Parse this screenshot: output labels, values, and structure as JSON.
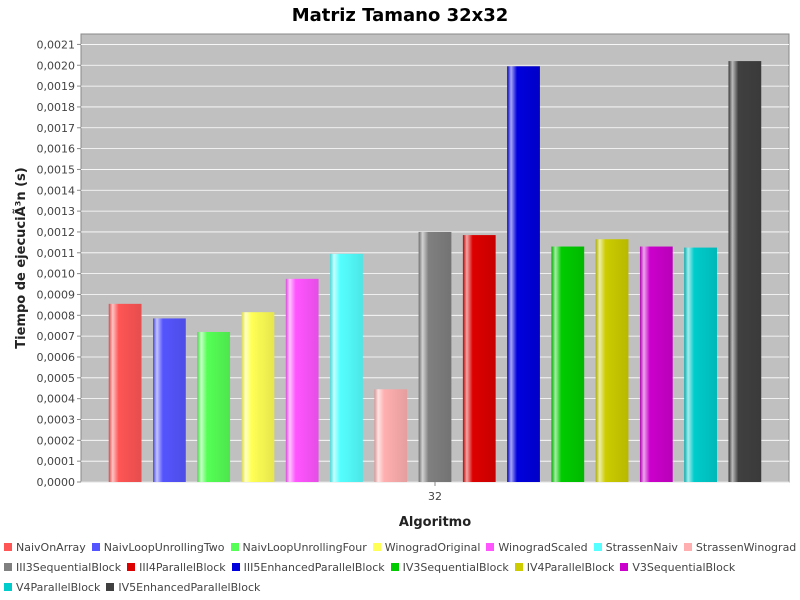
{
  "chart_data": {
    "type": "bar",
    "title": "Matriz Tamano 32x32",
    "xlabel": "Algoritmo",
    "ylabel": "Tiempo de ejecuciÃ³n (s)",
    "categories": [
      "32"
    ],
    "ylim": [
      0,
      0.00215
    ],
    "yticks": [
      "0,0000",
      "0,0001",
      "0,0002",
      "0,0003",
      "0,0004",
      "0,0005",
      "0,0006",
      "0,0007",
      "0,0008",
      "0,0009",
      "0,0010",
      "0,0011",
      "0,0012",
      "0,0013",
      "0,0014",
      "0,0015",
      "0,0016",
      "0,0017",
      "0,0018",
      "0,0019",
      "0,0020",
      "0,0021"
    ],
    "grid": true,
    "legend_position": "bottom",
    "series": [
      {
        "name": "NaivOnArray",
        "color": "#ff5555",
        "values": [
          0.000855
        ]
      },
      {
        "name": "NaivLoopUnrollingTwo",
        "color": "#5555ff",
        "values": [
          0.000785
        ]
      },
      {
        "name": "NaivLoopUnrollingFour",
        "color": "#55ff55",
        "values": [
          0.00072
        ]
      },
      {
        "name": "WinogradOriginal",
        "color": "#ffff55",
        "values": [
          0.000815
        ]
      },
      {
        "name": "WinogradScaled",
        "color": "#ff55ff",
        "values": [
          0.000975
        ]
      },
      {
        "name": "StrassenNaiv",
        "color": "#55ffff",
        "values": [
          0.001095
        ]
      },
      {
        "name": "StrassenWinograd",
        "color": "#ffafaf",
        "values": [
          0.000445
        ]
      },
      {
        "name": "III3SequentialBlock",
        "color": "#808080",
        "values": [
          0.0012
        ]
      },
      {
        "name": "III4ParallelBlock",
        "color": "#dd0000",
        "values": [
          0.001185
        ]
      },
      {
        "name": "III5EnhancedParallelBlock",
        "color": "#0000dd",
        "values": [
          0.001995
        ]
      },
      {
        "name": "IV3SequentialBlock",
        "color": "#00cc00",
        "values": [
          0.00113
        ]
      },
      {
        "name": "IV4ParallelBlock",
        "color": "#cccc00",
        "values": [
          0.001165
        ]
      },
      {
        "name": "V3SequentialBlock",
        "color": "#cc00cc",
        "values": [
          0.00113
        ]
      },
      {
        "name": "V4ParallelBlock",
        "color": "#00cccc",
        "values": [
          0.001125
        ]
      },
      {
        "name": "IV5EnhancedParallelBlock",
        "color": "#404040",
        "values": [
          0.00202
        ]
      }
    ]
  }
}
